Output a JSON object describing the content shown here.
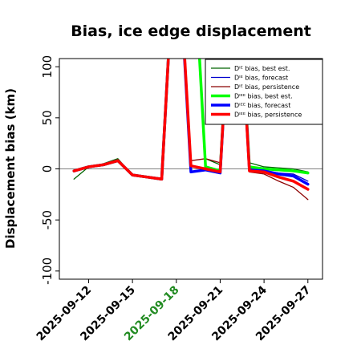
{
  "chart_data": {
    "type": "line",
    "title": "Bias, ice edge displacement",
    "ylabel": "Displacement bias (km)",
    "xlabel": "",
    "ylim": [
      -108,
      108
    ],
    "yticks": [
      -100,
      -50,
      0,
      50,
      100
    ],
    "xticks": [
      "2025-09-12",
      "2025-09-15",
      "2025-09-18",
      "2025-09-21",
      "2025-09-24",
      "2025-09-27"
    ],
    "xtick_colors": [
      "#000000",
      "#000000",
      "#228B22",
      "#000000",
      "#000000",
      "#000000"
    ],
    "x": [
      "2025-09-11",
      "2025-09-12",
      "2025-09-13",
      "2025-09-14",
      "2025-09-15",
      "2025-09-16",
      "2025-09-17",
      "2025-09-18",
      "2025-09-19",
      "2025-09-20",
      "2025-09-21",
      "2025-09-22",
      "2025-09-23",
      "2025-09-24",
      "2025-09-25",
      "2025-09-26",
      "2025-09-27"
    ],
    "reference_line": 0,
    "grid": false,
    "legend_position": "top-right",
    "series": [
      {
        "name": "Dᴵᴱ bias, best est.",
        "color": "#006400",
        "width": 1.3,
        "values": [
          -10,
          2,
          5,
          10,
          -6,
          -8,
          -10,
          250,
          260,
          10,
          4,
          250,
          6,
          2,
          1,
          0,
          -3
        ]
      },
      {
        "name": "Dᴵᴱ bias, forecast",
        "color": "#0000cd",
        "width": 1.3,
        "values": [
          -2,
          2,
          4,
          8,
          -6,
          -8,
          -10,
          250,
          -3,
          -1,
          -4,
          250,
          0,
          -2,
          -4,
          -5,
          -12
        ]
      },
      {
        "name": "Dᴵᴱ bias, persistence",
        "color": "#8b0000",
        "width": 1.3,
        "values": [
          -2,
          2,
          4,
          8,
          -6,
          -8,
          -10,
          250,
          8,
          10,
          6,
          250,
          -3,
          -5,
          -12,
          -18,
          -30
        ]
      },
      {
        "name": "Dᴵᴱᴱ bias, best est.",
        "color": "#00ff00",
        "width": 3.5,
        "values": [
          -2,
          2,
          4,
          8,
          -6,
          -8,
          -10,
          250,
          260,
          2,
          -2,
          250,
          2,
          0,
          -1,
          -2,
          -4
        ]
      },
      {
        "name": "Dᴵᴱᴱ bias, forecast",
        "color": "#0000ff",
        "width": 3.5,
        "values": [
          -2,
          2,
          4,
          8,
          -6,
          -8,
          -10,
          250,
          -3,
          -1,
          -4,
          250,
          -1,
          -2,
          -5,
          -7,
          -15
        ]
      },
      {
        "name": "Dᴵᴱᴱ bias, persistence",
        "color": "#ff0000",
        "width": 3.5,
        "values": [
          -2,
          2,
          4,
          8,
          -6,
          -8,
          -10,
          250,
          3,
          0,
          -3,
          250,
          -2,
          -3,
          -8,
          -12,
          -20
        ]
      }
    ]
  }
}
